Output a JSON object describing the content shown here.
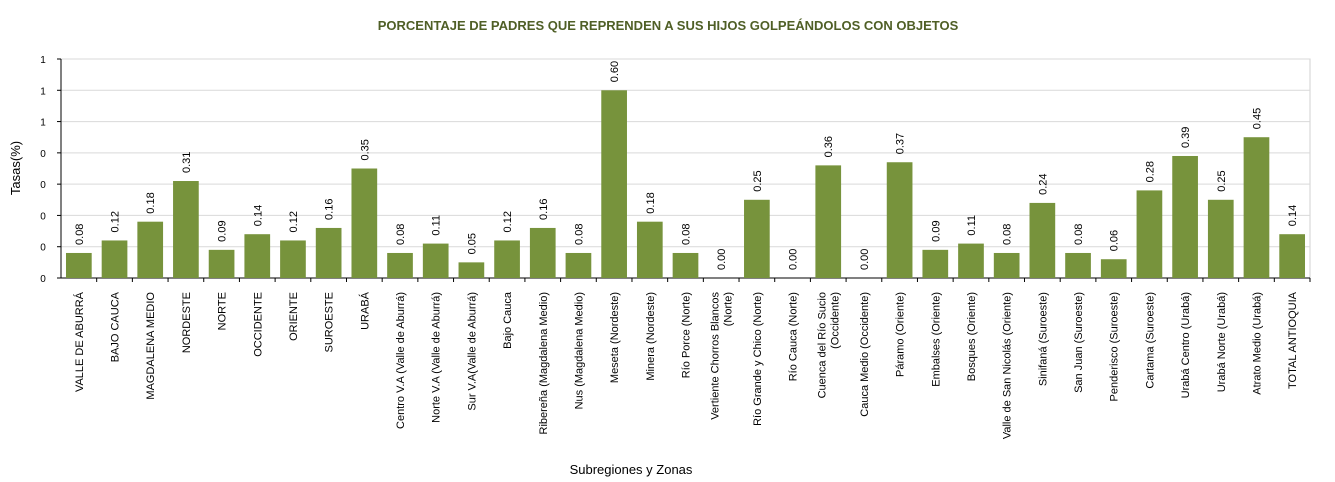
{
  "chart_data": {
    "type": "bar",
    "title": "PORCENTAJE DE PADRES QUE REPRENDEN A SUS HIJOS GOLPEÁNDOLOS CON OBJETOS",
    "xlabel": "Subregiones y Zonas",
    "ylabel": "Tasas(%)",
    "ylim": [
      0,
      0.7
    ],
    "ytick_values": [
      0,
      0.1,
      0.2,
      0.3,
      0.4,
      0.5,
      0.6,
      0.7
    ],
    "ytick_labels": [
      "0",
      "0",
      "0",
      "0",
      "0",
      "1",
      "1",
      "1"
    ],
    "grid": true,
    "bar_color": "#77933c",
    "categories": [
      [
        "VALLE DE ABURRÁ"
      ],
      [
        "BAJO CAUCA"
      ],
      [
        "MAGDALENA MEDIO"
      ],
      [
        "NORDESTE"
      ],
      [
        "NORTE"
      ],
      [
        "OCCIDENTE"
      ],
      [
        "ORIENTE"
      ],
      [
        "SUROESTE"
      ],
      [
        "URABÁ"
      ],
      [
        "Centro V.A (Valle de Aburrá)"
      ],
      [
        "Norte V.A (Valle de Aburrá)"
      ],
      [
        "Sur V.A(Valle de Aburrá)"
      ],
      [
        "Bajo Cauca"
      ],
      [
        "Ribereña  (Magdalena Medio)"
      ],
      [
        "Nus  (Magdalena Medio)"
      ],
      [
        "Meseta  (Nordeste)"
      ],
      [
        "Minera  (Nordeste)"
      ],
      [
        "Río Porce    (Norte)"
      ],
      [
        "Vertiente Chorros Blancos",
        "(Norte)"
      ],
      [
        "Río Grande y Chico  (Norte)"
      ],
      [
        "Río Cauca  (Norte)"
      ],
      [
        "Cuenca del Río Sucio",
        "(Occidente)"
      ],
      [
        "Cauca Medio  (Occidente)"
      ],
      [
        "Páramo  (Oriente)"
      ],
      [
        "Embalses (Oriente)"
      ],
      [
        "Bosques  (Oriente)"
      ],
      [
        "Valle de San Nicolás (Oriente)"
      ],
      [
        "Sinifaná  (Suroeste)"
      ],
      [
        "San Juan  (Suroeste)"
      ],
      [
        "Penderisco  (Suroeste)"
      ],
      [
        "Cartama  (Suroeste)"
      ],
      [
        "Urabá Centro  (Urabá)"
      ],
      [
        "Urabá Norte  (Urabá)"
      ],
      [
        "Atrato Medio  (Urabá)"
      ],
      [
        "TOTAL ANTIOQUIA"
      ]
    ],
    "values": [
      0.08,
      0.12,
      0.18,
      0.31,
      0.09,
      0.14,
      0.12,
      0.16,
      0.35,
      0.08,
      0.11,
      0.05,
      0.12,
      0.16,
      0.08,
      0.6,
      0.18,
      0.08,
      0.0,
      0.25,
      0.0,
      0.36,
      0.0,
      0.37,
      0.09,
      0.11,
      0.08,
      0.24,
      0.08,
      0.06,
      0.28,
      0.39,
      0.25,
      0.45,
      0.14
    ],
    "value_labels": [
      "0.08",
      "0.12",
      "0.18",
      "0.31",
      "0.09",
      "0.14",
      "0.12",
      "0.16",
      "0.35",
      "0.08",
      "0.11",
      "0.05",
      "0.12",
      "0.16",
      "0.08",
      "0.60",
      "0.18",
      "0.08",
      "0.00",
      "0.25",
      "0.00",
      "0.36",
      "0.00",
      "0.37",
      "0.09",
      "0.11",
      "0.08",
      "0.24",
      "0.08",
      "0.06",
      "0.28",
      "0.39",
      "0.25",
      "0.45",
      "0.14"
    ]
  }
}
